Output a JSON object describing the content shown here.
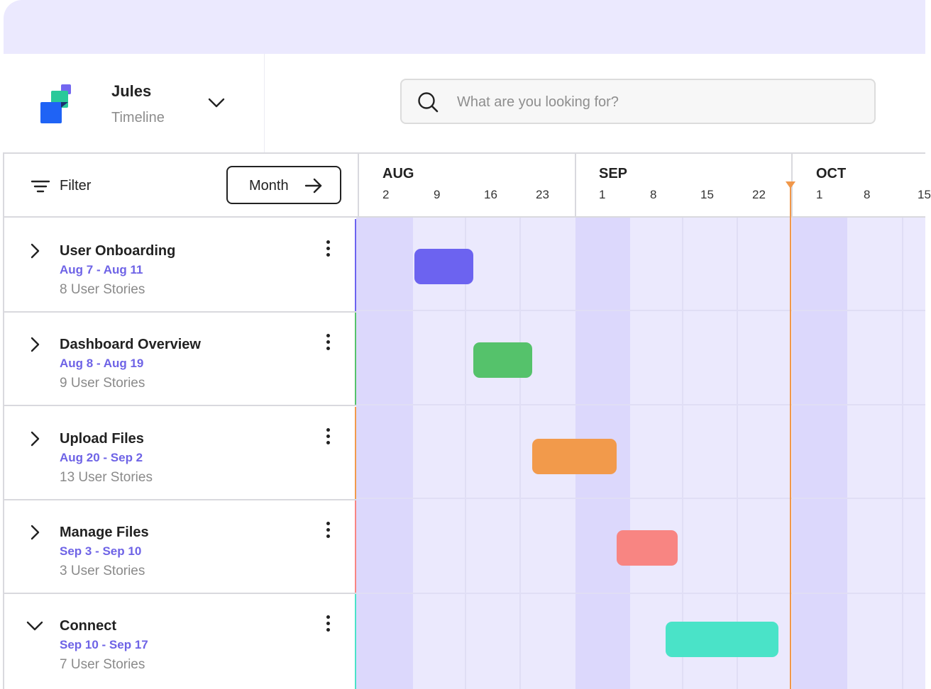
{
  "project": {
    "name": "Jules",
    "view": "Timeline"
  },
  "search": {
    "placeholder": "What are you looking for?"
  },
  "toolbar": {
    "filter_label": "Filter",
    "month_label": "Month"
  },
  "timeline": {
    "months": [
      {
        "label": "AUG",
        "weeks": [
          "2",
          "9",
          "16",
          "23"
        ]
      },
      {
        "label": "SEP",
        "weeks": [
          "1",
          "8",
          "15",
          "22"
        ]
      },
      {
        "label": "OCT",
        "weeks": [
          "1",
          "8",
          "15"
        ]
      }
    ],
    "today_color": "#f0974a"
  },
  "epics": [
    {
      "title": "User Onboarding",
      "dates": "Aug 7 - Aug 11",
      "stories": "8 User Stories",
      "color": "#6c63f0",
      "expanded": false
    },
    {
      "title": "Dashboard Overview",
      "dates": "Aug 8 - Aug 19",
      "stories": "9 User Stories",
      "color": "#55c26b",
      "expanded": false
    },
    {
      "title": "Upload Files",
      "dates": "Aug 20 - Sep 2",
      "stories": "13 User Stories",
      "color": "#f29a4b",
      "expanded": false
    },
    {
      "title": "Manage Files",
      "dates": "Sep 3 - Sep 10",
      "stories": "3 User Stories",
      "color": "#f88582",
      "expanded": false
    },
    {
      "title": "Connect",
      "dates": "Sep 10 - Sep 17",
      "stories": "7 User Stories",
      "color": "#4ae3c8",
      "expanded": true
    }
  ]
}
